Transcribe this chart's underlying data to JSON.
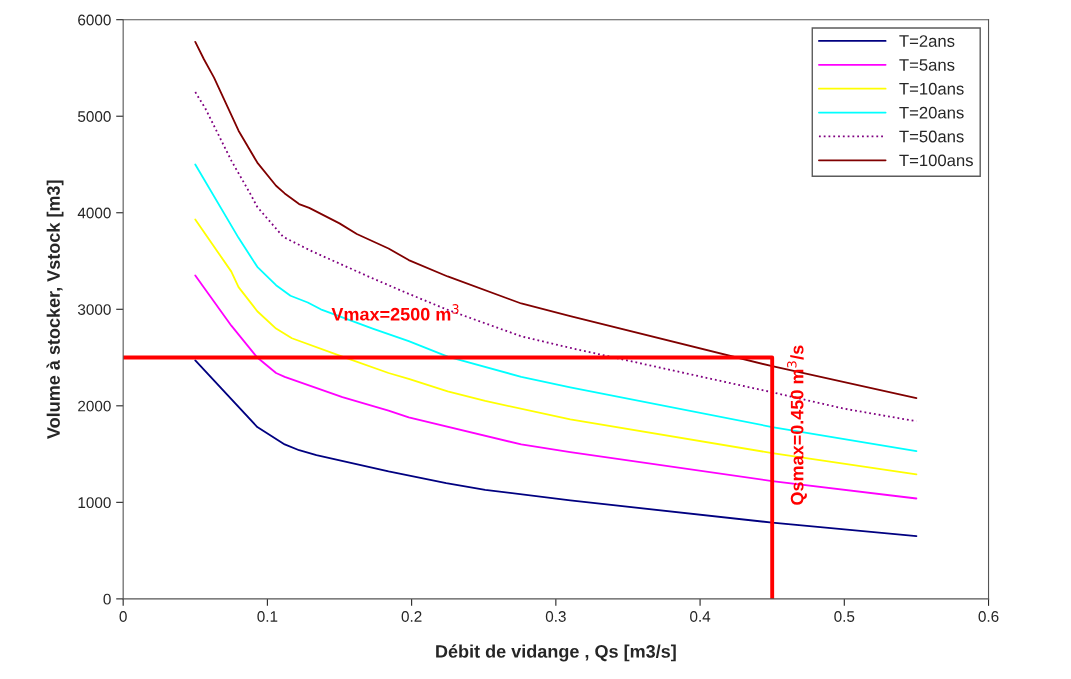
{
  "chart_data": {
    "type": "line",
    "xlabel": "Débit de vidange , Qs [m3/s]",
    "ylabel": "Volume à stocker, Vstock [m3]",
    "xlim": [
      0,
      0.6
    ],
    "xticks": [
      0,
      0.1,
      0.2,
      0.3,
      0.4,
      0.5,
      0.6
    ],
    "ylim": [
      0,
      6000
    ],
    "yticks": [
      0,
      1000,
      2000,
      3000,
      4000,
      5000,
      6000
    ],
    "grid": false,
    "legend": "top right",
    "series": [
      {
        "name": "T=2ans",
        "color": "#000080",
        "line_style": "solid",
        "x": [
          0.05,
          0.093,
          0.112,
          0.122,
          0.134,
          0.184,
          0.224,
          0.251,
          0.31,
          0.45,
          0.55
        ],
        "values": [
          2470,
          1780,
          1600,
          1540,
          1490,
          1320,
          1200,
          1130,
          1020,
          790,
          650
        ]
      },
      {
        "name": "T=5ans",
        "color": "#ff00ff",
        "line_style": "solid",
        "x": [
          0.05,
          0.075,
          0.093,
          0.106,
          0.112,
          0.152,
          0.184,
          0.198,
          0.276,
          0.31,
          0.45,
          0.55
        ],
        "values": [
          3350,
          2830,
          2500,
          2340,
          2300,
          2090,
          1950,
          1880,
          1600,
          1520,
          1220,
          1040
        ]
      },
      {
        "name": "T=10ans",
        "color": "#ffff00",
        "line_style": "solid",
        "x": [
          0.05,
          0.075,
          0.08,
          0.093,
          0.106,
          0.117,
          0.152,
          0.184,
          0.198,
          0.225,
          0.251,
          0.31,
          0.45,
          0.55
        ],
        "values": [
          3930,
          3390,
          3230,
          2980,
          2800,
          2700,
          2510,
          2340,
          2280,
          2150,
          2050,
          1860,
          1510,
          1290
        ]
      },
      {
        "name": "T=20ans",
        "color": "#00ffff",
        "line_style": "solid",
        "x": [
          0.05,
          0.08,
          0.093,
          0.106,
          0.116,
          0.128,
          0.137,
          0.173,
          0.198,
          0.225,
          0.276,
          0.31,
          0.45,
          0.55
        ],
        "values": [
          4500,
          3740,
          3440,
          3250,
          3140,
          3070,
          3000,
          2800,
          2670,
          2510,
          2300,
          2190,
          1780,
          1530
        ]
      },
      {
        "name": "T=50ans",
        "color": "#800080",
        "line_style": "dotted",
        "x": [
          0.05,
          0.057,
          0.075,
          0.088,
          0.093,
          0.111,
          0.131,
          0.173,
          0.198,
          0.224,
          0.276,
          0.31,
          0.45,
          0.5,
          0.55
        ],
        "values": [
          5250,
          5080,
          4540,
          4200,
          4060,
          3750,
          3600,
          3320,
          3160,
          3000,
          2720,
          2600,
          2140,
          1970,
          1840
        ]
      },
      {
        "name": "T=100ans",
        "color": "#800000",
        "line_style": "solid",
        "x": [
          0.05,
          0.056,
          0.063,
          0.08,
          0.093,
          0.106,
          0.112,
          0.122,
          0.129,
          0.15,
          0.162,
          0.184,
          0.198,
          0.225,
          0.276,
          0.31,
          0.45,
          0.55
        ],
        "values": [
          5770,
          5590,
          5400,
          4850,
          4520,
          4280,
          4200,
          4090,
          4050,
          3890,
          3780,
          3630,
          3510,
          3340,
          3060,
          2930,
          2410,
          2080
        ]
      },
      {
        "color": "#ff0000",
        "line_style": "solid",
        "x": [
          0,
          0.45,
          0.45
        ],
        "values": [
          2500,
          2500,
          0
        ]
      }
    ],
    "annotations": [
      "Vmax=2500 m$^{3}$",
      "Qsmax=0.450 m$^{3}$/s"
    ]
  }
}
